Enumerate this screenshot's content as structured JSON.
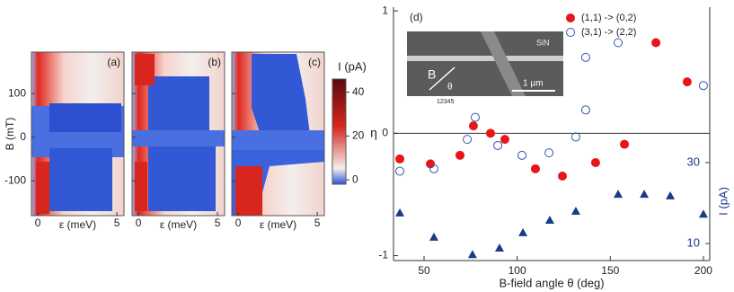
{
  "chart_data": [
    {
      "type": "heatmap",
      "panels": [
        "(a)",
        "(b)",
        "(c)"
      ],
      "xlabel": "ε (meV)",
      "ylabel": "B (mT)",
      "xlim": [
        -0.4,
        5.45
      ],
      "xticks": [
        0,
        5
      ],
      "ylim": [
        -180,
        195
      ],
      "yticks": [
        -100,
        0,
        100
      ],
      "colorbar": {
        "label": "I (pA)",
        "lim": [
          -2,
          46
        ],
        "ticks": [
          0,
          20,
          40
        ]
      }
    },
    {
      "type": "scatter",
      "label": "(d)",
      "xlabel": "B-field angle θ (deg)",
      "ylabel": "η",
      "y2label": "I (pA)",
      "xlim": [
        33.6,
        203.4
      ],
      "xticks": [
        50,
        100,
        150,
        200
      ],
      "ylim": [
        -1.04,
        1.03
      ],
      "yticks": [
        -1,
        0,
        1
      ],
      "y2lim": [
        5.8,
        68.4
      ],
      "y2ticks": [
        10,
        30
      ],
      "zero_line": true,
      "legend": "top-right",
      "inset_labels": [
        "SiN",
        "B",
        "θ",
        "12345",
        "1 µm"
      ],
      "series": [
        {
          "name": "(1,1) -> (0,2)",
          "color": "#e8151b",
          "marker": "filled-circle",
          "x": [
            37.0,
            53.4,
            69.3,
            76.5,
            85.7,
            93.4,
            109.8,
            124.3,
            142.1,
            157.6,
            174.5,
            191.3
          ],
          "values": [
            -0.21,
            -0.25,
            -0.18,
            0.06,
            0,
            -0.05,
            -0.29,
            -0.35,
            -0.24,
            -0.09,
            0.74,
            0.42
          ]
        },
        {
          "name": "(3,1) -> (2,2)",
          "color": "#2f55b0",
          "marker": "open-circle",
          "x": [
            37.0,
            55.3,
            73.2,
            77.5,
            89.6,
            102.6,
            117.1,
            131.5,
            136.8,
            136.8,
            154.2,
            200.0
          ],
          "values": [
            -0.31,
            -0.29,
            -0.05,
            0.13,
            -0.1,
            -0.18,
            -0.16,
            -0.03,
            0.19,
            0.62,
            0.74,
            0.39
          ]
        },
        {
          "color": "#1a3a8a",
          "marker": "triangle",
          "axis": "y2",
          "x": [
            37.0,
            55.3,
            76.0,
            90.5,
            103.1,
            117.5,
            131.5,
            154.2,
            168.2,
            182.2,
            200.0
          ],
          "values": [
            17.6,
            11.6,
            7.3,
            8.9,
            12.7,
            15.8,
            18.0,
            22.2,
            22.2,
            21.8,
            17.3
          ]
        }
      ]
    }
  ]
}
